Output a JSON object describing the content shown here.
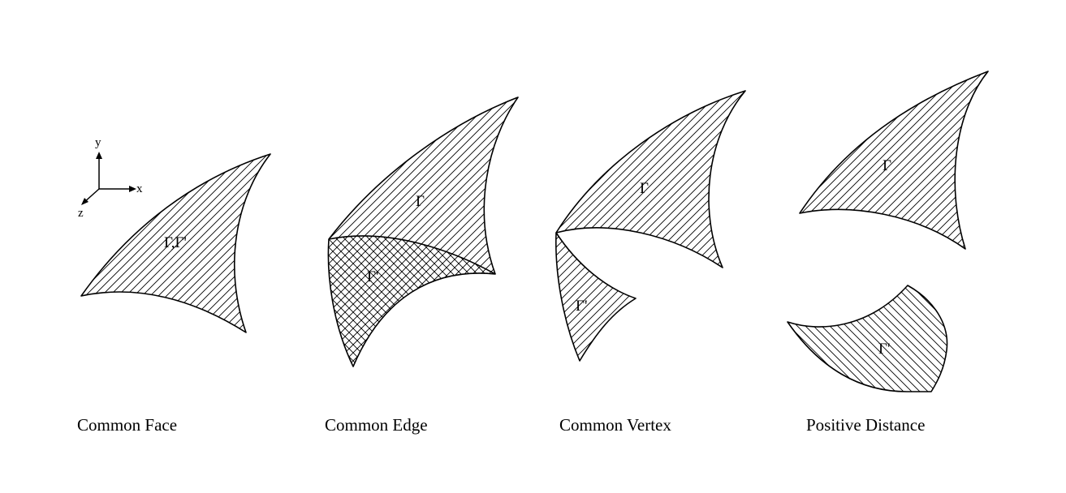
{
  "axes": {
    "x": "x",
    "y": "y",
    "z": "z"
  },
  "panels": [
    {
      "caption": "Common Face",
      "labels": [
        "Γ,Γ'"
      ]
    },
    {
      "caption": "Common Edge",
      "labels": [
        "Γ",
        "Γ'"
      ]
    },
    {
      "caption": "Common Vertex",
      "labels": [
        "Γ",
        "Γ'"
      ]
    },
    {
      "caption": "Positive Distance",
      "labels": [
        "Γ",
        "Γ'"
      ]
    }
  ],
  "colors": {
    "stroke": "#000000",
    "hatch": "#000000",
    "background": "#ffffff"
  }
}
